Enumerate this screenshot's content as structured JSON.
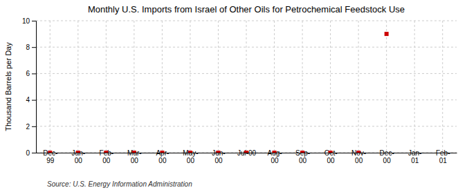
{
  "chart_data": {
    "type": "scatter",
    "title": "Monthly U.S. Imports from Israel of Other Oils for Petrochemical Feedstock Use",
    "y_label": "Thousand Barrels per Day",
    "annotations": [
      "Source: U.S. Energy Information Administration"
    ],
    "categories": [
      "Dec-\n99",
      "Jan-\n00",
      "Feb-\n00",
      "Mar-\n00",
      "Apr-\n00",
      "May-\n00",
      "Jun-\n00",
      "Jul-00",
      "Aug-\n00",
      "Sep-\n00",
      "Oct-\n00",
      "Nov-\n00",
      "Dec-\n00",
      "Jan-\n01",
      "Feb-\n01"
    ],
    "values": [
      0,
      0,
      0,
      0,
      0,
      0,
      0,
      0,
      0,
      0,
      0,
      0,
      9,
      null,
      null
    ],
    "color": "#cc0000",
    "marker": "square",
    "ylim": [
      0,
      10
    ],
    "yticks": [
      0,
      2,
      4,
      6,
      8,
      10
    ],
    "grid": true
  }
}
